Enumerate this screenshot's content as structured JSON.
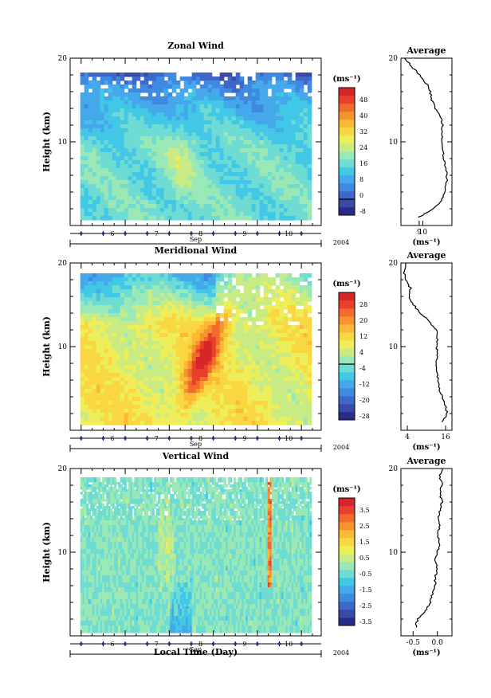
{
  "figure": {
    "common_xlabel": "Local Time (Day)",
    "year_label": "2004",
    "month_label": "Sep"
  },
  "chart_data": [
    {
      "type": "heatmap",
      "title": "Zonal Wind",
      "ylabel": "Height (km)",
      "ylim": [
        0,
        20
      ],
      "yticks": [
        10,
        20
      ],
      "xlim": [
        4.75,
        10.45
      ],
      "xticks": [
        6,
        7,
        8,
        9,
        10
      ],
      "colorbar": {
        "unit": "(ms⁻¹)",
        "levels": [
          -8,
          -4,
          0,
          4,
          8,
          12,
          16,
          20,
          24,
          28,
          32,
          36,
          40,
          44,
          48,
          52
        ],
        "tick_labels": [
          "-8",
          "0",
          "8",
          "16",
          "24",
          "32",
          "40",
          "48"
        ],
        "tick_values": [
          -8,
          0,
          8,
          16,
          24,
          32,
          40,
          48
        ],
        "zero_contour": 0
      },
      "profile": {
        "title": "Average",
        "xlabel": "(ms⁻¹)",
        "xlim": [
          4,
          18
        ],
        "xticks": [
          9,
          10
        ],
        "xtick_labels": [
          "9",
          "10"
        ],
        "heights": [
          1,
          2,
          3,
          4,
          5,
          6,
          7,
          8,
          9,
          10,
          11,
          12,
          13,
          14,
          15,
          16,
          17,
          18,
          19,
          20
        ],
        "values": [
          9,
          13,
          15,
          16,
          16.5,
          16.5,
          16.2,
          15.8,
          15.5,
          15.5,
          15.3,
          15.5,
          15,
          13.5,
          12.5,
          12,
          11,
          9,
          7,
          5
        ]
      }
    },
    {
      "type": "heatmap",
      "title": "Meridional Wind",
      "ylabel": "Height (km)",
      "ylim": [
        0,
        20
      ],
      "yticks": [
        10,
        20
      ],
      "xlim": [
        4.75,
        10.45
      ],
      "xticks": [
        6,
        7,
        8,
        9,
        10
      ],
      "colorbar": {
        "unit": "(ms⁻¹)",
        "levels": [
          -28,
          -24,
          -20,
          -16,
          -12,
          -8,
          -4,
          0,
          4,
          8,
          12,
          16,
          20,
          24,
          28,
          32
        ],
        "tick_labels": [
          "-28",
          "-20",
          "-12",
          "-4",
          "4",
          "12",
          "20",
          "28"
        ],
        "tick_values": [
          -28,
          -20,
          -12,
          -4,
          4,
          12,
          20,
          28
        ],
        "zero_contour": 0
      },
      "profile": {
        "title": "Average",
        "xlabel": "(ms⁻¹)",
        "xlim": [
          2,
          18
        ],
        "xticks": [
          4,
          16
        ],
        "xtick_labels": [
          "4",
          "16"
        ],
        "heights": [
          1,
          2,
          3,
          4,
          5,
          6,
          7,
          8,
          9,
          10,
          11,
          12,
          13,
          14,
          15,
          16,
          17,
          18,
          19,
          20
        ],
        "values": [
          15,
          16.5,
          16,
          15,
          14,
          13.5,
          13.5,
          13,
          13.5,
          13,
          13.5,
          13,
          11,
          8,
          6,
          4.5,
          5,
          3.5,
          3,
          3.5
        ]
      }
    },
    {
      "type": "heatmap",
      "title": "Vertical Wind",
      "ylabel": "Height (km)",
      "ylim": [
        0,
        20
      ],
      "yticks": [
        10,
        20
      ],
      "xlim": [
        4.75,
        10.45
      ],
      "xticks": [
        6,
        7,
        8,
        9,
        10
      ],
      "colorbar": {
        "unit": "(ms⁻¹)",
        "levels": [
          -3.5,
          -3.0,
          -2.5,
          -2.0,
          -1.5,
          -1.0,
          -0.5,
          0.0,
          0.5,
          1.0,
          1.5,
          2.0,
          2.5,
          3.0,
          3.5,
          4.0
        ],
        "tick_labels": [
          "-3.5",
          "-2.5",
          "-1.5",
          "-0.5",
          "0.5",
          "1.5",
          "2.5",
          "3.5"
        ],
        "tick_values": [
          -3.5,
          -2.5,
          -1.5,
          -0.5,
          0.5,
          1.5,
          2.5,
          3.5
        ],
        "zero_contour": null
      },
      "profile": {
        "title": "Average",
        "xlabel": "(ms⁻¹)",
        "xlim": [
          -0.75,
          0.3
        ],
        "xticks": [
          -0.5,
          0.0
        ],
        "xtick_labels": [
          "-0.5",
          "0.0"
        ],
        "heights": [
          1,
          2,
          3,
          4,
          5,
          6,
          7,
          8,
          9,
          10,
          11,
          12,
          13,
          14,
          15,
          16,
          17,
          18,
          19,
          20
        ],
        "values": [
          -0.45,
          -0.4,
          -0.25,
          -0.15,
          -0.1,
          -0.05,
          -0.05,
          0.0,
          -0.05,
          0.0,
          0.05,
          0.0,
          0.05,
          0.0,
          0.05,
          0.1,
          0.05,
          0.1,
          0.05,
          0.1
        ]
      }
    }
  ]
}
